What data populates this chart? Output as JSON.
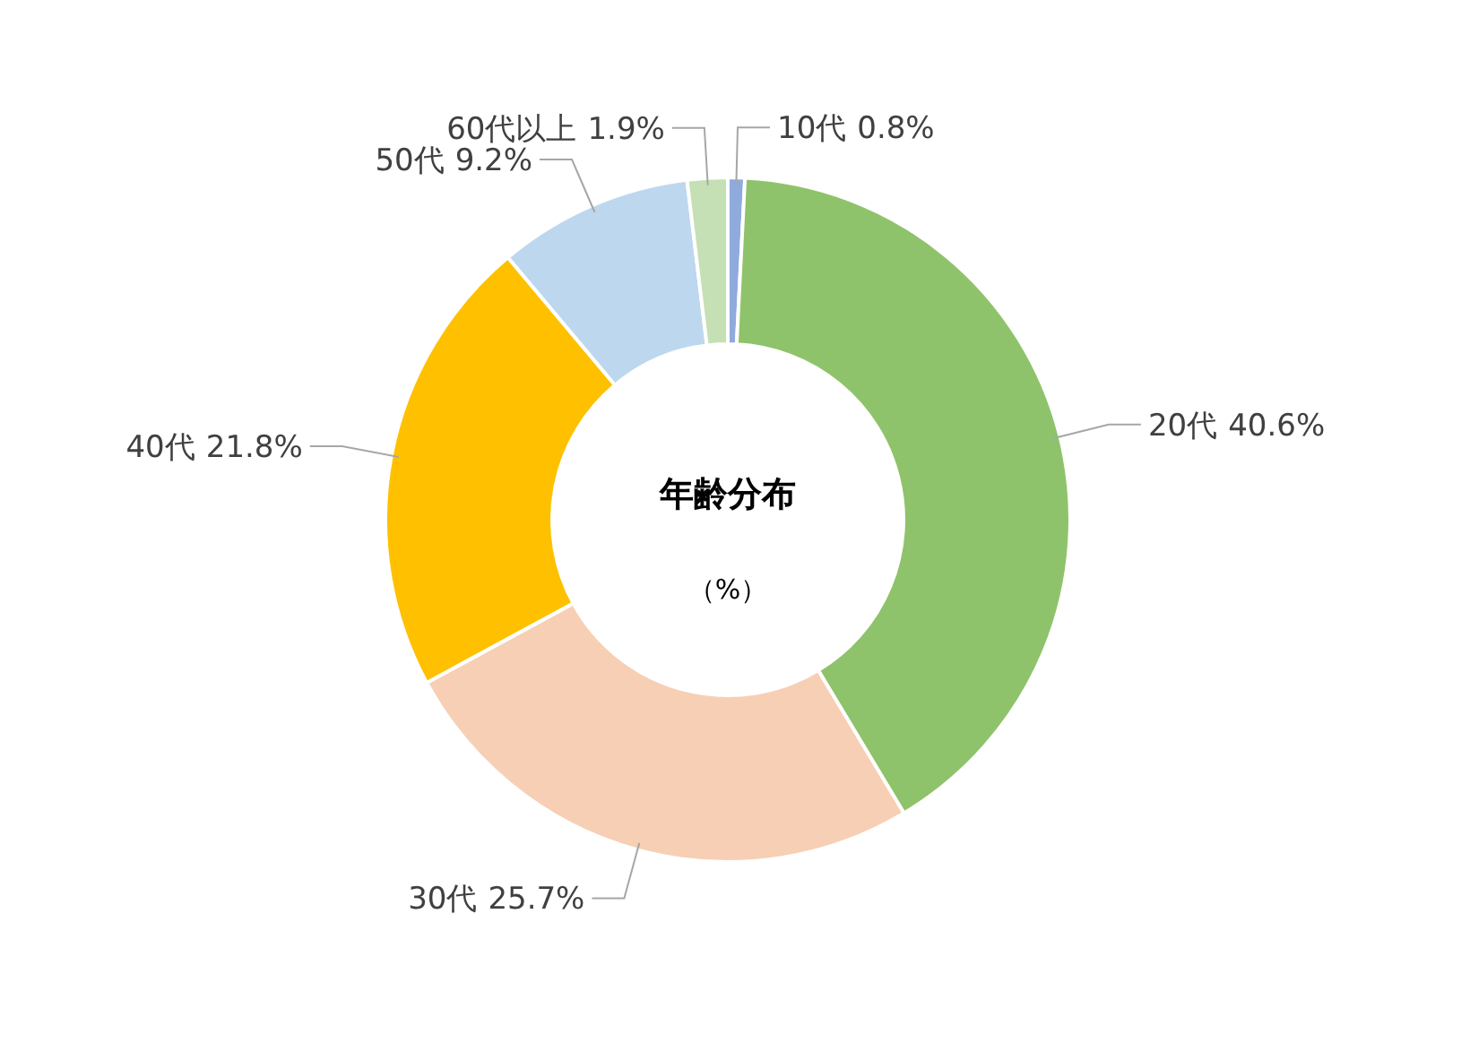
{
  "chart_data": {
    "type": "donut",
    "title": "年齢分布",
    "subtitle": "（%）",
    "categories": [
      "10代",
      "20代",
      "30代",
      "40代",
      "50代",
      "60代以上"
    ],
    "values": [
      0.8,
      40.6,
      25.7,
      21.8,
      9.2,
      1.9
    ],
    "colors": [
      "#8faadc",
      "#8fc36b",
      "#f7cfb5",
      "#ffc000",
      "#bdd7ee",
      "#c5e0b4"
    ],
    "value_labels": [
      "0.8%",
      "40.6%",
      "25.7%",
      "21.8%",
      "9.2%",
      "1.9%"
    ]
  }
}
